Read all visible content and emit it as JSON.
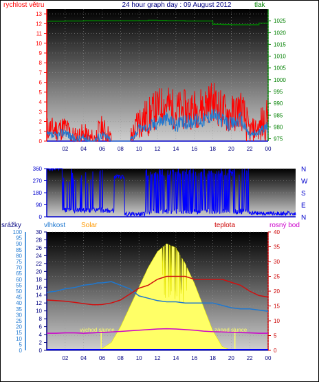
{
  "panel1": {
    "title": "24 hour graph day : 09 August 2012",
    "left_label": "rychlost větru",
    "right_label": "tlak",
    "left_ticks": [
      "0",
      "1",
      "2",
      "3",
      "4",
      "5",
      "6",
      "7",
      "8",
      "9",
      "10",
      "11",
      "12",
      "13"
    ],
    "right_ticks": [
      "975",
      "980",
      "985",
      "990",
      "995",
      "1000",
      "1005",
      "1010",
      "1015",
      "1020",
      "1025"
    ],
    "x_ticks": [
      "02",
      "04",
      "06",
      "08",
      "10",
      "12",
      "14",
      "16",
      "18",
      "20",
      "22",
      "00"
    ]
  },
  "panel2": {
    "left_ticks": [
      "0",
      "90",
      "180",
      "270",
      "360"
    ],
    "right_ticks": [
      "N",
      "W",
      "S",
      "E",
      "N"
    ]
  },
  "panel3": {
    "header_labels": {
      "srazky": "srážky",
      "vlhkost": "vlhkost",
      "solar": "Solar",
      "teplota": "teplota",
      "rosny_bod": "rosný bod"
    },
    "rain_ticks": [
      "0",
      "5",
      "10",
      "15",
      "20",
      "25",
      "30",
      "35",
      "40",
      "45",
      "50",
      "55",
      "60",
      "65",
      "70",
      "75",
      "80",
      "85",
      "90",
      "95",
      "100"
    ],
    "solar_ticks": [
      "0",
      "2",
      "4",
      "6",
      "8",
      "10",
      "12",
      "14",
      "16",
      "18",
      "20",
      "22",
      "24",
      "26",
      "28",
      "30"
    ],
    "temp_ticks": [
      "0",
      "5",
      "10",
      "15",
      "20",
      "25",
      "30",
      "35",
      "40"
    ],
    "x_ticks": [
      "02",
      "04",
      "06",
      "08",
      "10",
      "12",
      "14",
      "16",
      "18",
      "20",
      "22",
      "00"
    ],
    "sunrise_label": "východ slunce",
    "sunset_label": "západ slunce"
  },
  "chart_data": [
    {
      "type": "line",
      "title": "24 hour graph day : 09 August 2012",
      "xlabel": "",
      "ylabel": "rychlost větru",
      "ylim": [
        0,
        13.5
      ],
      "y2label": "tlak",
      "y2lim": [
        974,
        1030
      ],
      "x": [
        0,
        1,
        2,
        3,
        4,
        5,
        6,
        7,
        8,
        9,
        10,
        11,
        12,
        13,
        14,
        15,
        16,
        17,
        18,
        19,
        20,
        21,
        22,
        23,
        24
      ],
      "series": [
        {
          "color": "#ff0000",
          "values": [
            1.3,
            1.2,
            1.4,
            0.2,
            0.6,
            0.0,
            1.4,
            0.0,
            0.0,
            0.0,
            2.1,
            2.4,
            3.4,
            3.8,
            3.1,
            3.2,
            3.3,
            3.6,
            4.2,
            3.1,
            2.6,
            3.4,
            1.0,
            1.3,
            2.4
          ]
        },
        {
          "color": "#1f78d0",
          "values": [
            0.6,
            0.5,
            1.0,
            0.1,
            0.3,
            0.0,
            0.7,
            0.0,
            0.0,
            0.0,
            1.3,
            1.4,
            2.0,
            2.3,
            1.6,
            1.9,
            2.1,
            2.2,
            2.8,
            2.1,
            1.7,
            2.3,
            0.6,
            0.9,
            1.6
          ]
        },
        {
          "color": "#008000",
          "axis": "right",
          "values": [
            1024.8,
            1024.8,
            1024.9,
            1024.9,
            1025.0,
            1025.0,
            1025.0,
            1025.0,
            1025.0,
            1025.0,
            1025.0,
            1025.2,
            1025.1,
            1025.0,
            1025.0,
            1024.9,
            1024.9,
            1024.9,
            1023.5,
            1023.4,
            1023.3,
            1023.3,
            1023.3,
            1024.0,
            1024.0
          ]
        }
      ],
      "grid": true
    },
    {
      "type": "scatter",
      "ylim": [
        0,
        360
      ],
      "x": [
        0,
        1,
        2,
        3,
        4,
        5,
        6,
        7,
        8,
        9,
        10,
        11,
        12,
        13,
        14,
        15,
        16,
        17,
        18,
        19,
        20,
        21,
        22,
        23,
        24
      ],
      "series": [
        {
          "color": "#0000ff",
          "values": [
            360,
            360,
            270,
            45,
            40,
            90,
            45,
            300,
            20,
            20,
            310,
            330,
            320,
            320,
            300,
            310,
            300,
            320,
            360,
            330,
            30,
            25,
            20,
            25,
            20
          ]
        }
      ],
      "grid": true
    },
    {
      "type": "line",
      "x": [
        0,
        1,
        2,
        3,
        4,
        5,
        5.5,
        6,
        7,
        8,
        9,
        10,
        11,
        12,
        13,
        14,
        15,
        16,
        17,
        18,
        19,
        20,
        21,
        22,
        23,
        24
      ],
      "series": [
        {
          "color": "#1f78d0",
          "axis": "srazky/vlhkost",
          "ylim": [
            0,
            100
          ],
          "values": [
            49,
            50,
            52,
            53,
            55,
            56,
            57,
            57,
            58,
            55,
            52,
            46,
            44,
            42,
            41,
            41,
            40,
            40,
            40,
            40,
            38,
            36,
            35,
            35,
            34,
            33
          ]
        },
        {
          "color": "#d01010",
          "axis": "teplota",
          "ylim": [
            0,
            40
          ],
          "values": [
            17,
            16.8,
            16.6,
            16.2,
            15.8,
            15.4,
            15.4,
            15.5,
            16,
            17,
            19,
            21,
            22,
            24,
            25,
            25,
            25,
            24,
            24,
            24,
            24,
            23,
            22,
            20,
            18.5,
            18
          ]
        },
        {
          "color": "#cc00cc",
          "axis": "teplota",
          "ylim": [
            0,
            40
          ],
          "values": [
            5.8,
            5.8,
            5.9,
            5.9,
            5.8,
            5.9,
            6.0,
            6.0,
            6.2,
            6.4,
            6.6,
            6.8,
            7.0,
            7.2,
            7.3,
            7.2,
            7.0,
            6.8,
            6.5,
            6.3,
            6.2,
            6.1,
            6.0,
            5.9,
            5.8,
            5.8
          ]
        },
        {
          "color": "#ffff66",
          "axis": "Solar",
          "ylim": [
            0,
            30
          ],
          "values": [
            0,
            0,
            0,
            0,
            0,
            0,
            0,
            0.5,
            2,
            6,
            11,
            16,
            21,
            25,
            27,
            26,
            22,
            17,
            11,
            5,
            1,
            0,
            0,
            0,
            0,
            0
          ]
        }
      ],
      "annotations": [
        "východ slunce",
        "západ slunce"
      ],
      "grid": true
    }
  ]
}
